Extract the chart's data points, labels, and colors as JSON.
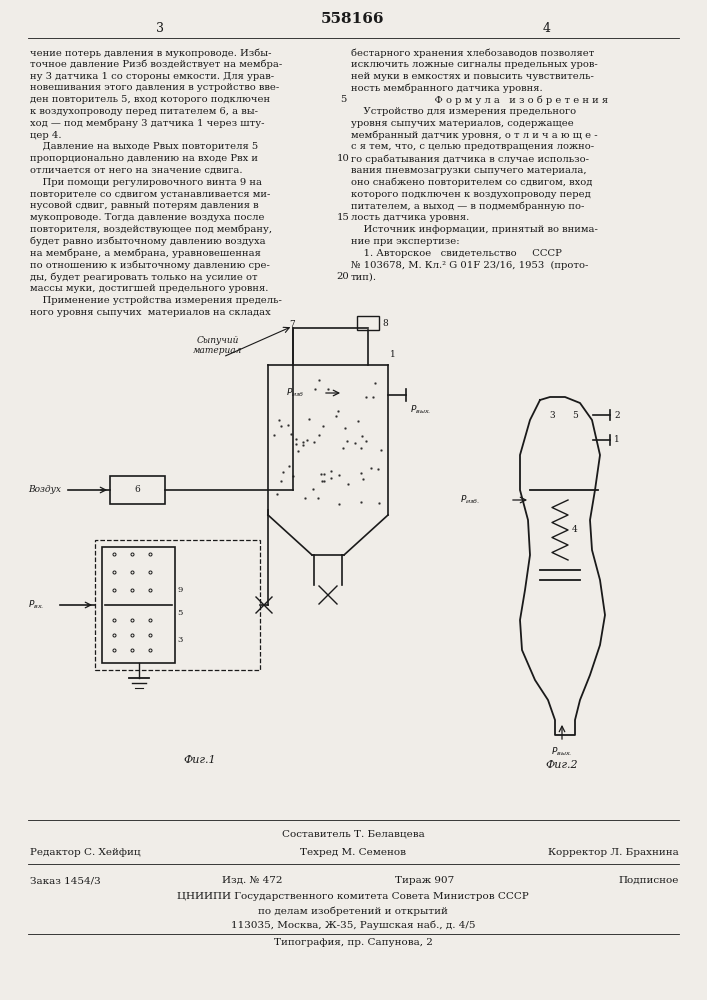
{
  "patent_number": "558166",
  "page_left": "3",
  "page_right": "4",
  "bg_color": "#f0ede8",
  "text_color": "#1a1a1a",
  "left_col_text": [
    "чение потерь давления в мукопроводе. Избы-",
    "точное давление Pизб воздействует на мембра-",
    "ну 3 датчика 1 со стороны емкости. Для урав-",
    "новешивания этого давления в устройство вве-",
    "ден повторитель 5, вход которого подключен",
    "к воздухопроводу перед питателем 6, а вы-",
    "ход — под мембрану 3 датчика 1 через шту-",
    "цер 4.",
    "    Давление на выходе Рвых повторителя 5",
    "пропорционально давлению на входе Рвх и",
    "отличается от него на значение сдвига.",
    "    При помощи регулировочного винта 9 на",
    "повторителе со сдвигом устанавливается ми-",
    "нусовой сдвиг, равный потерям давления в",
    "мукопроводе. Тогда давление воздуха после",
    "повторителя, воздействующее под мембрану,",
    "будет равно избыточному давлению воздуха",
    "на мембране, а мембрана, уравновешенная",
    "по отношению к избыточному давлению сре-",
    "ды, будет реагировать только на усилие от",
    "массы муки, достигшей предельного уровня.",
    "    Применение устройства измерения предель-",
    "ного уровня сыпучих  материалов на складах"
  ],
  "right_col_text": [
    "бестарного хранения хлебозаводов позволяет",
    "исключить ложные сигналы предельных уров-",
    "ней муки в емкостях и повысить чувствитель-",
    "ность мембранного датчика уровня.",
    "    Ф о р м у л а   и з о б р е т е н и я",
    "    Устройство для измерения предельного",
    "уровня сыпучих материалов, содержащее",
    "мембранный датчик уровня, о т л и ч а ю щ е -",
    "с я тем, что, с целью предотвращения ложно-",
    "го срабатывания датчика в случае использо-",
    "вания пневмозагрузки сыпучего материала,",
    "оно снабжено повторителем со сдвигом, вход",
    "которого подключен к воздухопроводу перед",
    "питателем, а выход — в подмембранную по-",
    "лость датчика уровня.",
    "    Источник информации, принятый во внима-",
    "ние при экспертизе:",
    "    1. Авторское   свидетельство     СССР",
    "№ 103678, М. Кл.² G 01F 23/16, 1953  (прото-",
    "тип)."
  ],
  "line_numbers": [
    "5",
    "10",
    "15",
    "20"
  ],
  "line_number_rows": [
    4,
    9,
    14,
    19
  ],
  "fig1_caption": "Фиг.1",
  "fig2_caption": "Фиг.2",
  "footer_line1": "Составитель Т. Белавцева",
  "footer_line2_left": "Редактор С. Хейфиц",
  "footer_line2_mid": "Техред М. Семенов",
  "footer_line2_right": "Корректор Л. Брахнина",
  "footer_line3_1": "Заказ 1454/3",
  "footer_line3_2": "Изд. № 472",
  "footer_line3_3": "Тираж 907",
  "footer_line3_4": "Подписное",
  "footer_line4": "ЦНИИПИ Государственного комитета Совета Министров СССР",
  "footer_line5": "по делам изобретений и открытий",
  "footer_line6": "113035, Москва, Ж-35, Раушская наб., д. 4/5",
  "footer_line7": "Типография, пр. Сапунова, 2"
}
